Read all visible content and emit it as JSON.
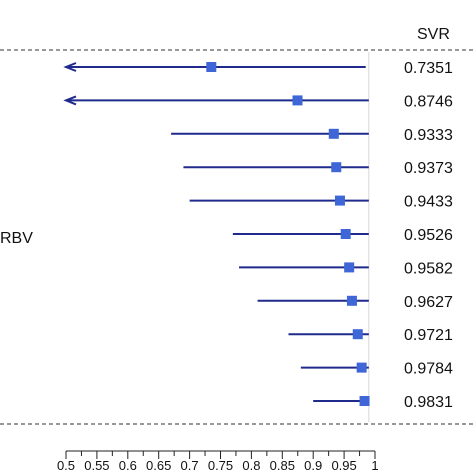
{
  "header": {
    "column_title": "SVR"
  },
  "side_label": "RBV",
  "chart_data": {
    "type": "forest",
    "title": "",
    "xlabel": "",
    "ylabel": "",
    "xlim": [
      0.5,
      1.0
    ],
    "reference_line": 0.99,
    "colors": {
      "line": "#1f2a8c",
      "marker": "#3f66d6",
      "divider": "#333333"
    },
    "rows": [
      {
        "estimate": 0.7351,
        "lower": 0.5,
        "upper": 0.985,
        "arrow_left": true,
        "label": "0.7351"
      },
      {
        "estimate": 0.8746,
        "lower": 0.5,
        "upper": 0.99,
        "arrow_left": true,
        "label": "0.8746"
      },
      {
        "estimate": 0.9333,
        "lower": 0.67,
        "upper": 0.99,
        "arrow_left": false,
        "label": "0.9333"
      },
      {
        "estimate": 0.9373,
        "lower": 0.69,
        "upper": 0.99,
        "arrow_left": false,
        "label": "0.9373"
      },
      {
        "estimate": 0.9433,
        "lower": 0.7,
        "upper": 0.99,
        "arrow_left": false,
        "label": "0.9433"
      },
      {
        "estimate": 0.9526,
        "lower": 0.77,
        "upper": 0.99,
        "arrow_left": false,
        "label": "0.9526"
      },
      {
        "estimate": 0.9582,
        "lower": 0.78,
        "upper": 0.99,
        "arrow_left": false,
        "label": "0.9582"
      },
      {
        "estimate": 0.9627,
        "lower": 0.81,
        "upper": 0.99,
        "arrow_left": false,
        "label": "0.9627"
      },
      {
        "estimate": 0.9721,
        "lower": 0.86,
        "upper": 0.99,
        "arrow_left": false,
        "label": "0.9721"
      },
      {
        "estimate": 0.9784,
        "lower": 0.88,
        "upper": 0.99,
        "arrow_left": false,
        "label": "0.9784"
      },
      {
        "estimate": 0.9831,
        "lower": 0.9,
        "upper": 0.99,
        "arrow_left": false,
        "label": "0.9831"
      }
    ],
    "ticks": [
      {
        "value": 0.5,
        "label": "0.5"
      },
      {
        "value": 0.55,
        "label": "0.55"
      },
      {
        "value": 0.6,
        "label": "0.6"
      },
      {
        "value": 0.65,
        "label": "0.65"
      },
      {
        "value": 0.7,
        "label": "0.7"
      },
      {
        "value": 0.75,
        "label": "0.75"
      },
      {
        "value": 0.8,
        "label": "0.8"
      },
      {
        "value": 0.85,
        "label": "0.85"
      },
      {
        "value": 0.9,
        "label": "0.9"
      },
      {
        "value": 0.95,
        "label": "0.95"
      },
      {
        "value": 1.0,
        "label": "1"
      }
    ],
    "minor_ticks": [
      0.525,
      0.575,
      0.625,
      0.675,
      0.725,
      0.775,
      0.825,
      0.875,
      0.925,
      0.975
    ]
  }
}
